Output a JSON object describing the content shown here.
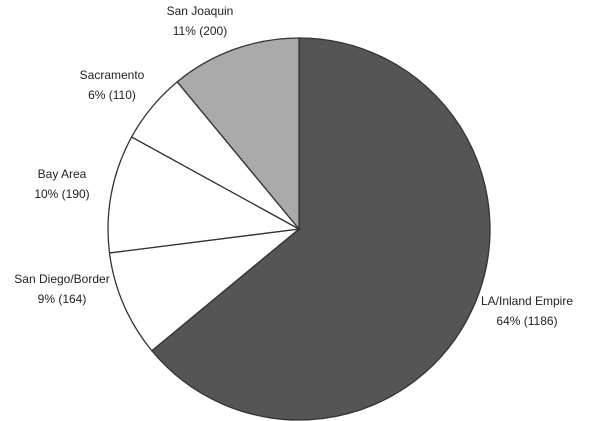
{
  "chart_data": {
    "type": "pie",
    "categories": [
      "LA/Inland Empire",
      "San Diego/Border",
      "Bay Area",
      "Sacramento",
      "San Joaquin"
    ],
    "values": [
      64,
      9,
      10,
      6,
      11
    ],
    "value_labels": [
      "64% (1186)",
      "9% (164)",
      "10% (190)",
      "6% (110)",
      "11% (200)"
    ],
    "colors": [
      "#555555",
      "#ffffff",
      "#ffffff",
      "#ffffff",
      "#aaaaaa"
    ]
  }
}
